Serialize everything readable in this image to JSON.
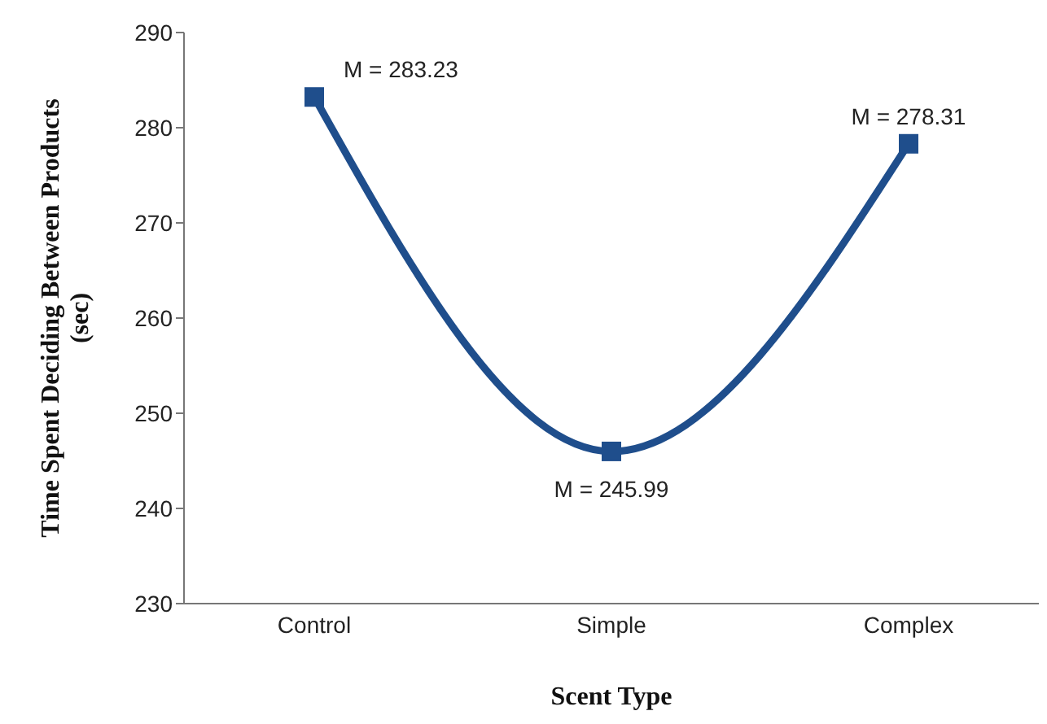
{
  "chart_data": {
    "type": "line",
    "xlabel": "Scent Type",
    "ylabel": "Time Spent Deciding Between Products (sec)",
    "categories": [
      "Control",
      "Simple",
      "Complex"
    ],
    "series": [
      {
        "color": "#1f4e8c",
        "values": [
          283.23,
          245.99,
          278.31
        ],
        "value_labels": [
          "M = 283.23",
          "M = 245.99",
          "M = 278.31"
        ]
      }
    ],
    "ylim": [
      230,
      290
    ],
    "yticks": [
      230,
      240,
      250,
      260,
      270,
      280,
      290
    ],
    "grid": false,
    "legend": false,
    "marker": "square",
    "line_style": "solid"
  }
}
